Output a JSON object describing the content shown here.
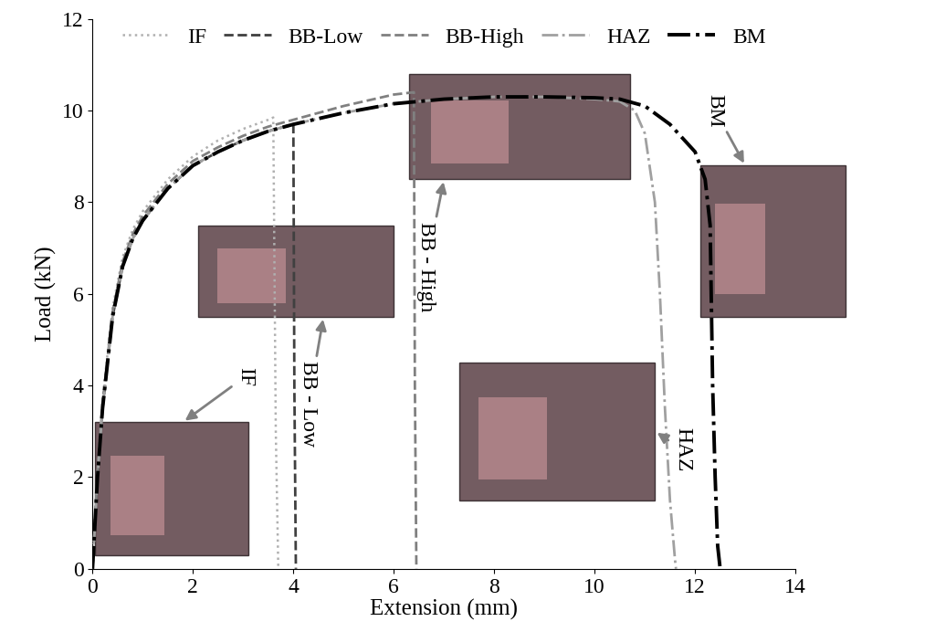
{
  "chart_data": {
    "type": "line",
    "x_label": "Extension (mm)",
    "y_label": "Load (kN)",
    "xlim": [
      0,
      14
    ],
    "xticks": [
      0,
      2,
      4,
      6,
      8,
      10,
      12,
      14
    ],
    "ylim": [
      0,
      12
    ],
    "yticks": [
      0,
      2,
      4,
      6,
      8,
      10,
      12
    ],
    "grid": false,
    "legend": "upper center",
    "annotations": [
      "IF",
      "BB - Low",
      "BB - High",
      "HAZ",
      "BM"
    ],
    "series": [
      {
        "name": "IF",
        "color": "#b0b0b0",
        "line_style": "dotted",
        "x": [
          0,
          0.1,
          0.2,
          0.4,
          0.6,
          0.8,
          1.0,
          1.5,
          2.0,
          2.5,
          3.0,
          3.5,
          3.6,
          3.65,
          3.7
        ],
        "values": [
          0,
          2.1,
          3.7,
          5.7,
          6.8,
          7.4,
          7.8,
          8.5,
          9.0,
          9.35,
          9.6,
          9.8,
          9.85,
          3.0,
          0
        ]
      },
      {
        "name": "BB-Low",
        "color": "#404040",
        "line_style": "dashed",
        "x": [
          0,
          0.1,
          0.2,
          0.4,
          0.6,
          0.8,
          1.0,
          1.5,
          2.0,
          2.5,
          3.0,
          3.5,
          4.0,
          4.02,
          4.05
        ],
        "values": [
          0,
          2.0,
          3.5,
          5.5,
          6.6,
          7.2,
          7.6,
          8.3,
          8.8,
          9.1,
          9.35,
          9.55,
          9.7,
          4.0,
          0
        ]
      },
      {
        "name": "BB-High",
        "color": "#808080",
        "line_style": "dashed",
        "x": [
          0,
          0.1,
          0.2,
          0.4,
          0.6,
          0.8,
          1.0,
          1.5,
          2.0,
          2.5,
          3.0,
          3.5,
          4.0,
          5.0,
          6.0,
          6.4,
          6.42,
          6.45
        ],
        "values": [
          0,
          2.1,
          3.6,
          5.6,
          6.7,
          7.3,
          7.7,
          8.4,
          8.9,
          9.2,
          9.45,
          9.65,
          9.8,
          10.1,
          10.35,
          10.4,
          4.0,
          0
        ]
      },
      {
        "name": "HAZ",
        "color": "#a0a0a0",
        "line_style": "dashdot",
        "x": [
          0,
          0.1,
          0.2,
          0.4,
          0.6,
          0.8,
          1.0,
          1.5,
          2.0,
          2.5,
          3.0,
          3.5,
          4.0,
          5.0,
          6.0,
          7.0,
          8.0,
          9.0,
          10.0,
          10.5,
          10.8,
          11.0,
          11.2,
          11.3,
          11.4,
          11.5,
          11.6,
          11.62
        ],
        "values": [
          0,
          2.0,
          3.5,
          5.5,
          6.6,
          7.2,
          7.6,
          8.3,
          8.8,
          9.1,
          9.35,
          9.55,
          9.7,
          9.95,
          10.15,
          10.25,
          10.3,
          10.3,
          10.25,
          10.2,
          10.0,
          9.5,
          8.0,
          6.0,
          3.5,
          1.5,
          0.2,
          0
        ]
      },
      {
        "name": "BM",
        "color": "#000000",
        "line_style": "dashdot",
        "x": [
          0,
          0.1,
          0.2,
          0.4,
          0.6,
          0.8,
          1.0,
          1.5,
          2.0,
          2.5,
          3.0,
          3.5,
          4.0,
          5.0,
          6.0,
          7.0,
          8.0,
          9.0,
          10.0,
          10.5,
          11.0,
          11.5,
          12.0,
          12.2,
          12.3,
          12.35,
          12.4,
          12.45,
          12.5
        ],
        "values": [
          0,
          2.0,
          3.5,
          5.5,
          6.6,
          7.2,
          7.6,
          8.3,
          8.8,
          9.1,
          9.35,
          9.55,
          9.7,
          9.95,
          10.15,
          10.25,
          10.3,
          10.3,
          10.28,
          10.25,
          10.1,
          9.7,
          9.1,
          8.5,
          7.5,
          4.0,
          2.0,
          0.5,
          0
        ]
      }
    ]
  }
}
